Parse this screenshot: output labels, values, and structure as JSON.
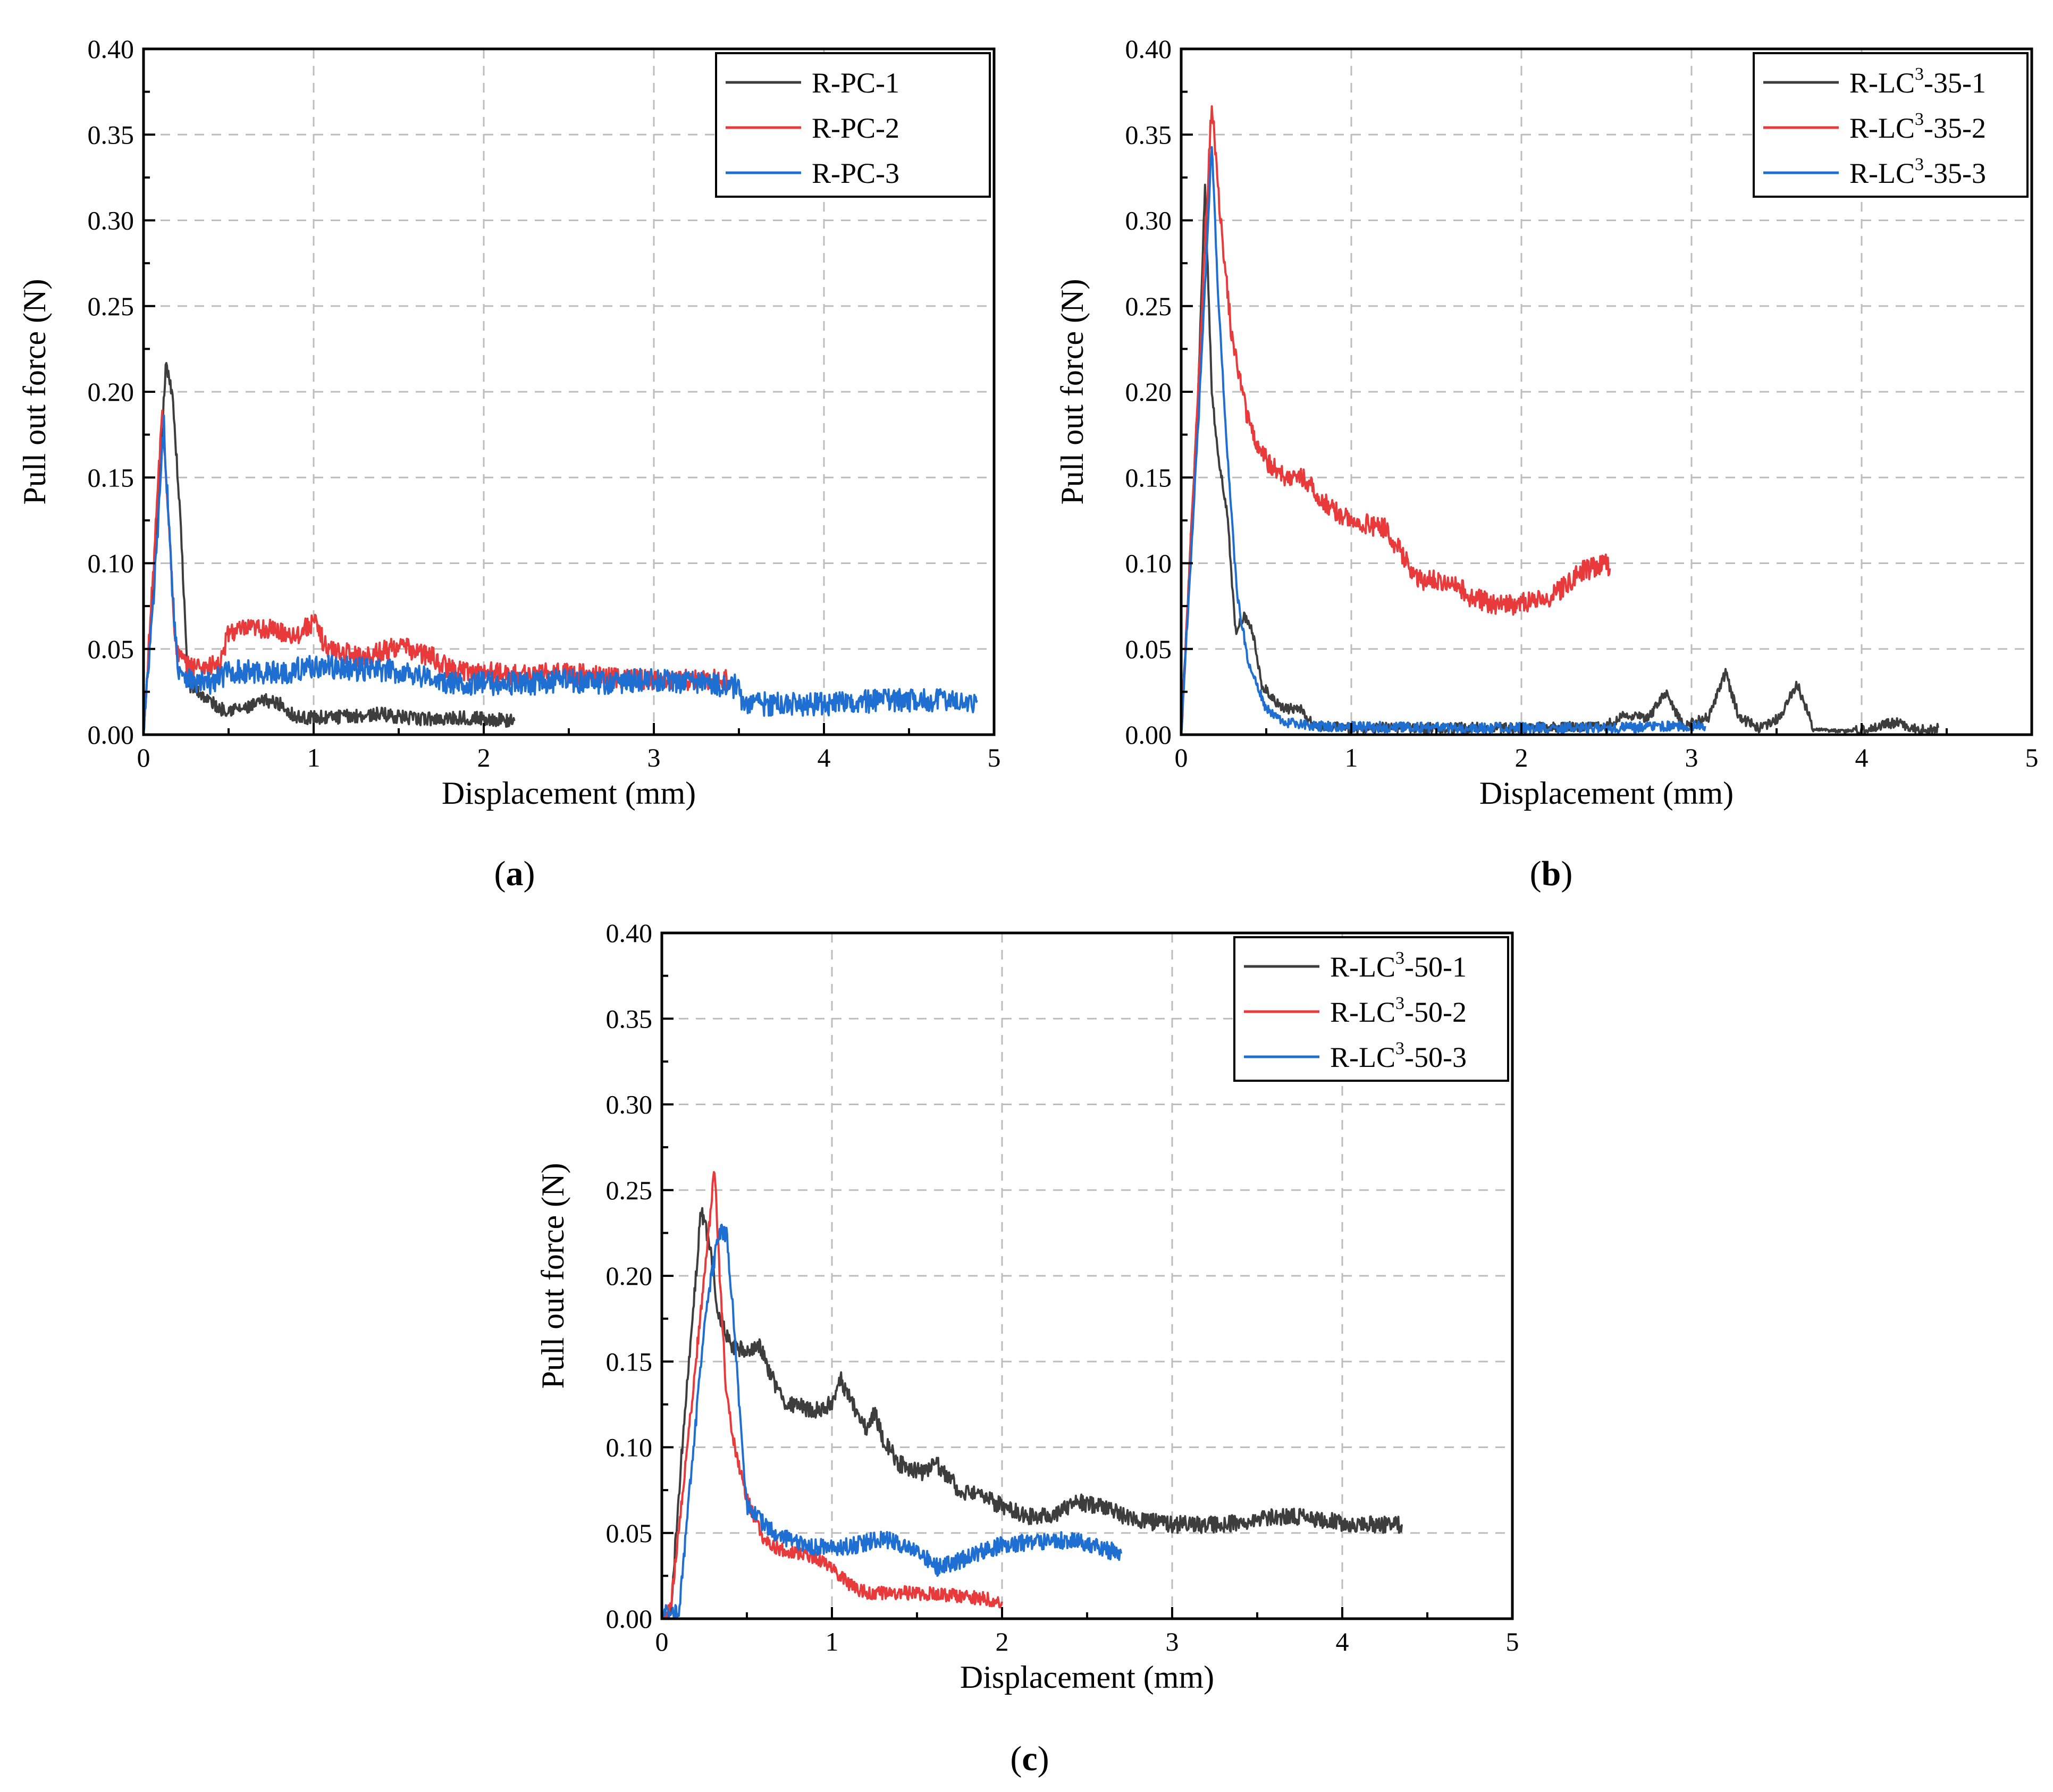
{
  "figure": {
    "panels": [
      {
        "id": "a",
        "label": "a"
      },
      {
        "id": "b",
        "label": "b"
      },
      {
        "id": "c",
        "label": "c"
      }
    ]
  },
  "chart_data": [
    {
      "panel": "a",
      "type": "line",
      "title": "",
      "xlabel": "Displacement (mm)",
      "ylabel": "Pull out force (N)",
      "xlim": [
        0,
        5
      ],
      "ylim": [
        0,
        0.4
      ],
      "xticks": [
        "0",
        "1",
        "2",
        "3",
        "4",
        "5"
      ],
      "yticks": [
        "0.00",
        "0.05",
        "0.10",
        "0.15",
        "0.20",
        "0.25",
        "0.30",
        "0.35",
        "0.40"
      ],
      "grid": true,
      "legend_position": "top-right",
      "series": [
        {
          "name": "R-PC-1",
          "label_parts": [
            "R-PC-1"
          ],
          "color": "#3d3d3d",
          "noise": 0.004,
          "points": [
            [
              0,
              0
            ],
            [
              0.08,
              0.12
            ],
            [
              0.13,
              0.215
            ],
            [
              0.17,
              0.2
            ],
            [
              0.22,
              0.12
            ],
            [
              0.26,
              0.03
            ],
            [
              0.32,
              0.025
            ],
            [
              0.45,
              0.015
            ],
            [
              0.6,
              0.015
            ],
            [
              0.72,
              0.02
            ],
            [
              0.8,
              0.018
            ],
            [
              0.9,
              0.01
            ],
            [
              1.1,
              0.01
            ],
            [
              1.4,
              0.012
            ],
            [
              1.6,
              0.009
            ],
            [
              1.9,
              0.01
            ],
            [
              2.18,
              0.008
            ]
          ]
        },
        {
          "name": "R-PC-2",
          "label_parts": [
            "R-PC-2"
          ],
          "color": "#e8393b",
          "noise": 0.006,
          "points": [
            [
              0,
              0
            ],
            [
              0.06,
              0.1
            ],
            [
              0.11,
              0.19
            ],
            [
              0.15,
              0.12
            ],
            [
              0.19,
              0.05
            ],
            [
              0.25,
              0.04
            ],
            [
              0.35,
              0.04
            ],
            [
              0.45,
              0.04
            ],
            [
              0.5,
              0.06
            ],
            [
              0.7,
              0.062
            ],
            [
              0.9,
              0.058
            ],
            [
              1.0,
              0.066
            ],
            [
              1.08,
              0.05
            ],
            [
              1.3,
              0.045
            ],
            [
              1.5,
              0.052
            ],
            [
              1.7,
              0.045
            ],
            [
              1.8,
              0.038
            ],
            [
              2.2,
              0.035
            ],
            [
              2.5,
              0.036
            ],
            [
              2.7,
              0.034
            ],
            [
              3.0,
              0.032
            ],
            [
              3.3,
              0.032
            ],
            [
              3.45,
              0.032
            ]
          ]
        },
        {
          "name": "R-PC-3",
          "label_parts": [
            "R-PC-3"
          ],
          "color": "#1f6fd2",
          "noise": 0.007,
          "points": [
            [
              0,
              0
            ],
            [
              0.06,
              0.08
            ],
            [
              0.12,
              0.18
            ],
            [
              0.16,
              0.1
            ],
            [
              0.2,
              0.04
            ],
            [
              0.3,
              0.03
            ],
            [
              0.4,
              0.03
            ],
            [
              0.5,
              0.037
            ],
            [
              0.8,
              0.036
            ],
            [
              1.0,
              0.04
            ],
            [
              1.3,
              0.038
            ],
            [
              1.6,
              0.036
            ],
            [
              1.75,
              0.03
            ],
            [
              2.0,
              0.03
            ],
            [
              2.3,
              0.03
            ],
            [
              2.5,
              0.032
            ],
            [
              2.7,
              0.03
            ],
            [
              3.0,
              0.032
            ],
            [
              3.3,
              0.03
            ],
            [
              3.5,
              0.028
            ],
            [
              3.52,
              0.018
            ],
            [
              4.0,
              0.018
            ],
            [
              4.5,
              0.02
            ],
            [
              4.9,
              0.02
            ]
          ]
        }
      ]
    },
    {
      "panel": "b",
      "type": "line",
      "title": "",
      "xlabel": "Displacement (mm)",
      "ylabel": "Pull out force (N)",
      "xlim": [
        0,
        5
      ],
      "ylim": [
        0,
        0.4
      ],
      "xticks": [
        "0",
        "1",
        "2",
        "3",
        "4",
        "5"
      ],
      "yticks": [
        "0.00",
        "0.05",
        "0.10",
        "0.15",
        "0.20",
        "0.25",
        "0.30",
        "0.35",
        "0.40"
      ],
      "grid": true,
      "legend_position": "top-right",
      "series": [
        {
          "name": "R-LC3-35-1",
          "label_parts": [
            "R-LC",
            "3",
            "-35-1"
          ],
          "color": "#3d3d3d",
          "noise": 0.003,
          "points": [
            [
              0,
              0
            ],
            [
              0.1,
              0.2
            ],
            [
              0.14,
              0.32
            ],
            [
              0.18,
              0.2
            ],
            [
              0.22,
              0.16
            ],
            [
              0.27,
              0.13
            ],
            [
              0.32,
              0.06
            ],
            [
              0.37,
              0.07
            ],
            [
              0.42,
              0.06
            ],
            [
              0.47,
              0.03
            ],
            [
              0.55,
              0.02
            ],
            [
              0.6,
              0.015
            ],
            [
              0.7,
              0.015
            ],
            [
              0.78,
              0.005
            ],
            [
              1.0,
              0.004
            ],
            [
              2.0,
              0.004
            ],
            [
              2.5,
              0.005
            ],
            [
              2.6,
              0.012
            ],
            [
              2.75,
              0.01
            ],
            [
              2.85,
              0.025
            ],
            [
              2.95,
              0.005
            ],
            [
              3.1,
              0.01
            ],
            [
              3.2,
              0.036
            ],
            [
              3.28,
              0.01
            ],
            [
              3.4,
              0.004
            ],
            [
              3.52,
              0.01
            ],
            [
              3.62,
              0.03
            ],
            [
              3.72,
              0.003
            ],
            [
              3.9,
              0.002
            ],
            [
              4.1,
              0.005
            ],
            [
              4.2,
              0.007
            ],
            [
              4.3,
              0.003
            ],
            [
              4.45,
              0.004
            ]
          ]
        },
        {
          "name": "R-LC3-35-2",
          "label_parts": [
            "R-LC",
            "3",
            "-35-2"
          ],
          "color": "#e8393b",
          "noise": 0.006,
          "points": [
            [
              0,
              0
            ],
            [
              0.1,
              0.2
            ],
            [
              0.18,
              0.37
            ],
            [
              0.24,
              0.29
            ],
            [
              0.3,
              0.23
            ],
            [
              0.4,
              0.18
            ],
            [
              0.5,
              0.16
            ],
            [
              0.6,
              0.15
            ],
            [
              0.7,
              0.152
            ],
            [
              0.8,
              0.14
            ],
            [
              0.9,
              0.13
            ],
            [
              1.0,
              0.125
            ],
            [
              1.2,
              0.12
            ],
            [
              1.3,
              0.105
            ],
            [
              1.4,
              0.09
            ],
            [
              1.6,
              0.09
            ],
            [
              1.7,
              0.08
            ],
            [
              1.9,
              0.075
            ],
            [
              2.1,
              0.078
            ],
            [
              2.2,
              0.082
            ],
            [
              2.35,
              0.095
            ],
            [
              2.5,
              0.1
            ],
            [
              2.52,
              0.097
            ]
          ]
        },
        {
          "name": "R-LC3-35-3",
          "label_parts": [
            "R-LC",
            "3",
            "-35-3"
          ],
          "color": "#1f6fd2",
          "noise": 0.003,
          "points": [
            [
              0,
              0
            ],
            [
              0.1,
              0.18
            ],
            [
              0.18,
              0.345
            ],
            [
              0.22,
              0.25
            ],
            [
              0.28,
              0.15
            ],
            [
              0.33,
              0.08
            ],
            [
              0.4,
              0.04
            ],
            [
              0.5,
              0.015
            ],
            [
              0.6,
              0.007
            ],
            [
              0.8,
              0.005
            ],
            [
              1.5,
              0.004
            ],
            [
              2.5,
              0.004
            ],
            [
              3.0,
              0.005
            ],
            [
              3.08,
              0.005
            ]
          ]
        }
      ]
    },
    {
      "panel": "c",
      "type": "line",
      "title": "",
      "xlabel": "Displacement (mm)",
      "ylabel": "Pull out force (N)",
      "xlim": [
        0,
        5
      ],
      "ylim": [
        0,
        0.4
      ],
      "xticks": [
        "0",
        "1",
        "2",
        "3",
        "4",
        "5"
      ],
      "yticks": [
        "0.00",
        "0.05",
        "0.10",
        "0.15",
        "0.20",
        "0.25",
        "0.30",
        "0.35",
        "0.40"
      ],
      "grid": true,
      "legend_position": "top-right",
      "series": [
        {
          "name": "R-LC3-50-1",
          "label_parts": [
            "R-LC",
            "3",
            "-50-1"
          ],
          "color": "#3d3d3d",
          "noise": 0.005,
          "points": [
            [
              0,
              0
            ],
            [
              0.05,
              0.003
            ],
            [
              0.12,
              0.1
            ],
            [
              0.2,
              0.2
            ],
            [
              0.23,
              0.238
            ],
            [
              0.28,
              0.22
            ],
            [
              0.33,
              0.18
            ],
            [
              0.4,
              0.16
            ],
            [
              0.5,
              0.155
            ],
            [
              0.57,
              0.16
            ],
            [
              0.65,
              0.14
            ],
            [
              0.72,
              0.125
            ],
            [
              0.9,
              0.122
            ],
            [
              1.0,
              0.125
            ],
            [
              1.05,
              0.14
            ],
            [
              1.12,
              0.125
            ],
            [
              1.2,
              0.11
            ],
            [
              1.25,
              0.12
            ],
            [
              1.3,
              0.105
            ],
            [
              1.4,
              0.09
            ],
            [
              1.55,
              0.085
            ],
            [
              1.6,
              0.092
            ],
            [
              1.75,
              0.075
            ],
            [
              1.9,
              0.07
            ],
            [
              2.0,
              0.066
            ],
            [
              2.15,
              0.06
            ],
            [
              2.3,
              0.06
            ],
            [
              2.45,
              0.068
            ],
            [
              2.6,
              0.065
            ],
            [
              2.75,
              0.058
            ],
            [
              3.0,
              0.055
            ],
            [
              3.3,
              0.055
            ],
            [
              3.5,
              0.058
            ],
            [
              3.7,
              0.06
            ],
            [
              4.0,
              0.056
            ],
            [
              4.2,
              0.055
            ],
            [
              4.35,
              0.055
            ]
          ]
        },
        {
          "name": "R-LC3-50-2",
          "label_parts": [
            "R-LC",
            "3",
            "-50-2"
          ],
          "color": "#e8393b",
          "noise": 0.004,
          "points": [
            [
              0,
              0
            ],
            [
              0.05,
              0.005
            ],
            [
              0.15,
              0.1
            ],
            [
              0.25,
              0.2
            ],
            [
              0.31,
              0.262
            ],
            [
              0.34,
              0.2
            ],
            [
              0.38,
              0.13
            ],
            [
              0.43,
              0.1
            ],
            [
              0.5,
              0.07
            ],
            [
              0.6,
              0.045
            ],
            [
              0.7,
              0.04
            ],
            [
              0.85,
              0.038
            ],
            [
              1.0,
              0.03
            ],
            [
              1.1,
              0.02
            ],
            [
              1.2,
              0.015
            ],
            [
              1.5,
              0.015
            ],
            [
              1.8,
              0.013
            ],
            [
              2.0,
              0.01
            ]
          ]
        },
        {
          "name": "R-LC3-50-3",
          "label_parts": [
            "R-LC",
            "3",
            "-50-3"
          ],
          "color": "#1f6fd2",
          "noise": 0.005,
          "points": [
            [
              0,
              0
            ],
            [
              0.02,
              0.004
            ],
            [
              0.1,
              0.004
            ],
            [
              0.15,
              0.06
            ],
            [
              0.25,
              0.17
            ],
            [
              0.3,
              0.205
            ],
            [
              0.34,
              0.225
            ],
            [
              0.38,
              0.225
            ],
            [
              0.42,
              0.18
            ],
            [
              0.47,
              0.1
            ],
            [
              0.5,
              0.065
            ],
            [
              0.6,
              0.055
            ],
            [
              0.7,
              0.048
            ],
            [
              0.8,
              0.045
            ],
            [
              0.9,
              0.042
            ],
            [
              1.1,
              0.042
            ],
            [
              1.3,
              0.047
            ],
            [
              1.5,
              0.04
            ],
            [
              1.62,
              0.03
            ],
            [
              1.7,
              0.032
            ],
            [
              1.85,
              0.038
            ],
            [
              2.0,
              0.043
            ],
            [
              2.2,
              0.045
            ],
            [
              2.4,
              0.046
            ],
            [
              2.55,
              0.042
            ],
            [
              2.7,
              0.038
            ]
          ]
        }
      ]
    }
  ]
}
